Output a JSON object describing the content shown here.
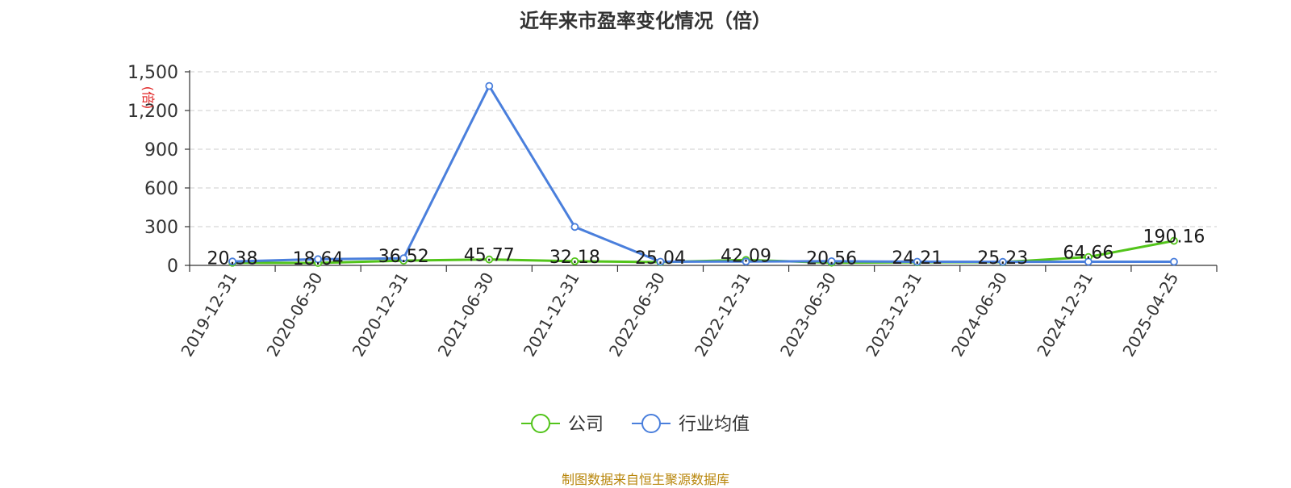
{
  "title": "近年来市盈率变化情况（倍）",
  "footer": "制图数据来自恒生聚源数据库",
  "colors": {
    "company": "#52c41a",
    "industry": "#4a7fdc",
    "ylabel": "#e02020",
    "footer": "#b8860b"
  },
  "chart_data": {
    "type": "line",
    "title": "近年来市盈率变化情况（倍）",
    "ylabel": "(倍)",
    "xlabel": "",
    "ylim": [
      0,
      1500
    ],
    "yticks": [
      0,
      300,
      600,
      900,
      1200,
      1500
    ],
    "ytick_labels": [
      "0",
      "300",
      "600",
      "900",
      "1,200",
      "1,500"
    ],
    "grid": true,
    "legend_position": "bottom",
    "categories": [
      "2019-12-31",
      "2020-06-30",
      "2020-12-31",
      "2021-06-30",
      "2021-12-31",
      "2022-06-30",
      "2022-12-31",
      "2023-06-30",
      "2023-12-31",
      "2024-06-30",
      "2024-12-31",
      "2025-04-25"
    ],
    "series": [
      {
        "name": "公司",
        "values": [
          20.38,
          18.64,
          36.52,
          45.77,
          32.18,
          25.04,
          42.09,
          20.56,
          24.21,
          25.23,
          64.66,
          190.16
        ],
        "labels": [
          "20.38",
          "18.64",
          "36.52",
          "45.77",
          "32.18",
          "25.04",
          "42.09",
          "20.56",
          "24.21",
          "25.23",
          "64.66",
          "190.16"
        ]
      },
      {
        "name": "行业均值",
        "values": [
          30,
          48,
          55,
          1390,
          298,
          28,
          30,
          32,
          28,
          27,
          28,
          28
        ]
      }
    ]
  }
}
